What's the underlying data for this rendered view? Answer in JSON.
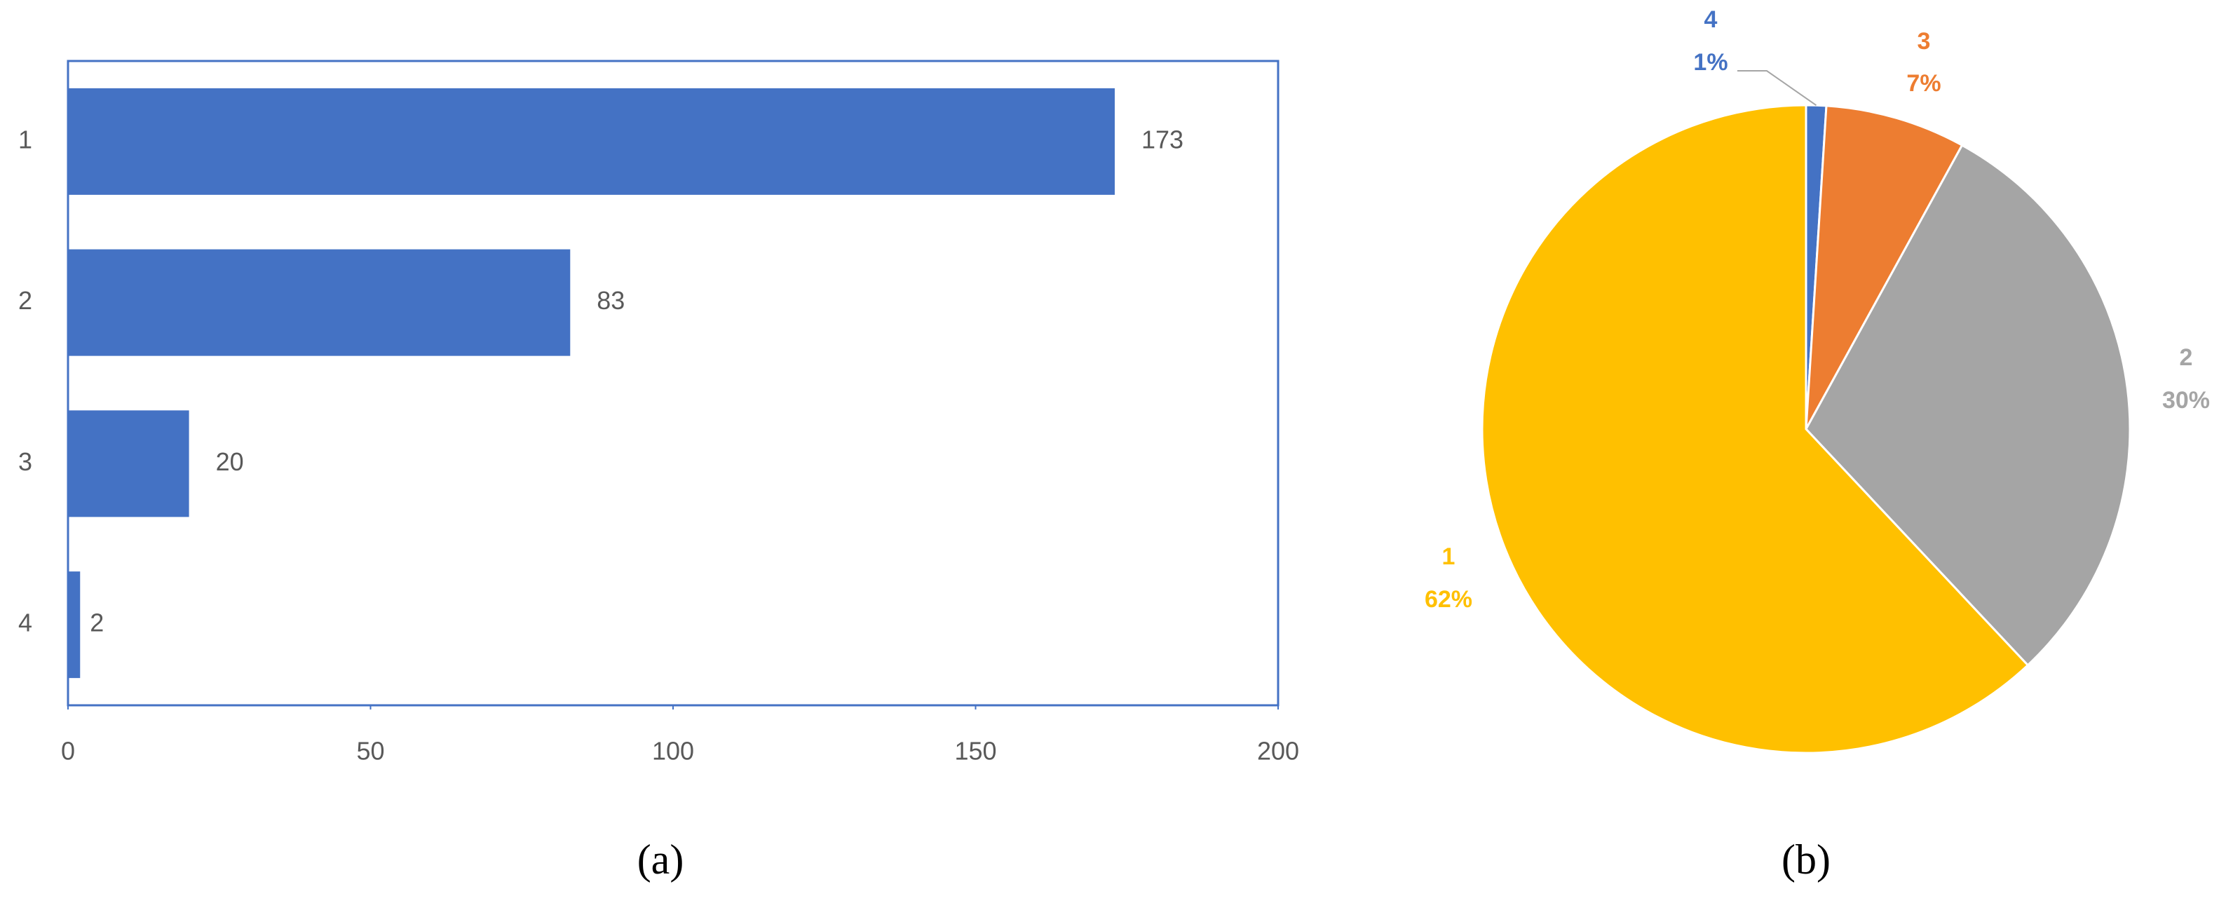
{
  "chart_data": [
    {
      "type": "bar",
      "orientation": "horizontal",
      "caption": "(a)",
      "categories": [
        "1",
        "2",
        "3",
        "4"
      ],
      "values": [
        173,
        83,
        20,
        2
      ],
      "color": "#4472c4",
      "xlim": [
        0,
        200
      ],
      "xticks": [
        0,
        50,
        100,
        150,
        200
      ]
    },
    {
      "type": "pie",
      "caption": "(b)",
      "categories": [
        "4",
        "3",
        "2",
        "1"
      ],
      "values": [
        1,
        7,
        30,
        62
      ],
      "value_labels": [
        "1%",
        "7%",
        "30%",
        "62%"
      ],
      "colors": [
        "#4472c4",
        "#ed7d31",
        "#a5a5a5",
        "#ffc000"
      ]
    }
  ]
}
